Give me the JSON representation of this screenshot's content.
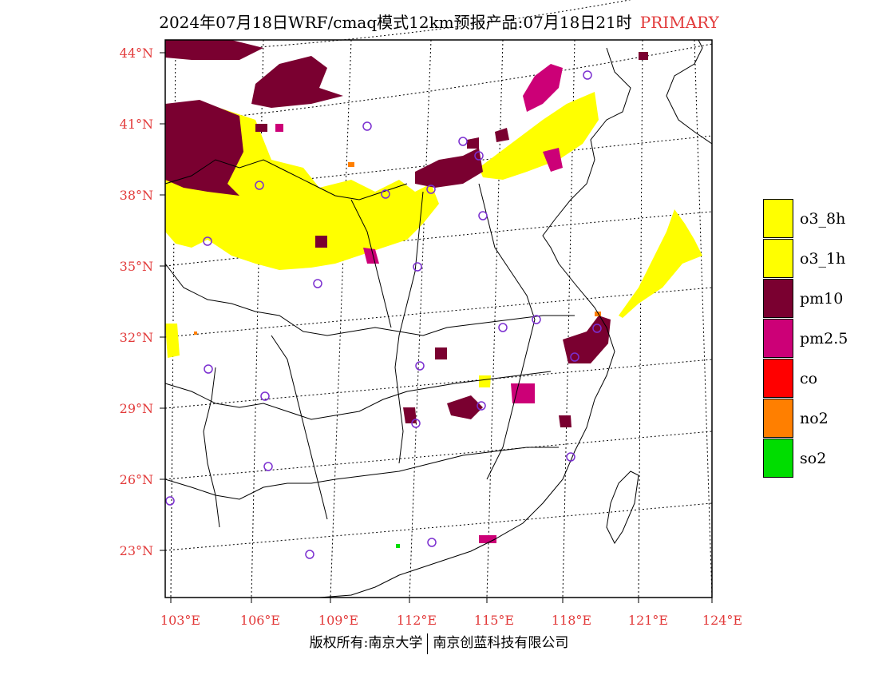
{
  "title": {
    "main": "2024年07月18日WRF/cmaq模式12km预报产品:07月18日21时",
    "tag": "PRIMARY"
  },
  "axes": {
    "lat_labels": [
      "44°N",
      "41°N",
      "38°N",
      "35°N",
      "32°N",
      "29°N",
      "26°N",
      "23°N"
    ],
    "lon_labels": [
      "103°E",
      "106°E",
      "109°E",
      "112°E",
      "115°E",
      "118°E",
      "121°E",
      "124°E"
    ]
  },
  "legend": [
    {
      "label": "o3_8h",
      "color": "#ffff00"
    },
    {
      "label": "o3_1h",
      "color": "#ffff00"
    },
    {
      "label": "pm10",
      "color": "#7a0030"
    },
    {
      "label": "pm2.5",
      "color": "#cc0077"
    },
    {
      "label": "co",
      "color": "#ff0000"
    },
    {
      "label": "no2",
      "color": "#ff7f00"
    },
    {
      "label": "so2",
      "color": "#00dd00"
    }
  ],
  "colors": {
    "o3": "#ffff00",
    "pm10": "#7a0030",
    "pm25": "#cc0077",
    "no2": "#ff7f00",
    "so2": "#00dd00",
    "station": "#7b2fd0",
    "axis_label": "#e23a3a"
  },
  "footer": {
    "left": "版权所有:南京大学",
    "right": "南京创蓝科技有限公司"
  }
}
